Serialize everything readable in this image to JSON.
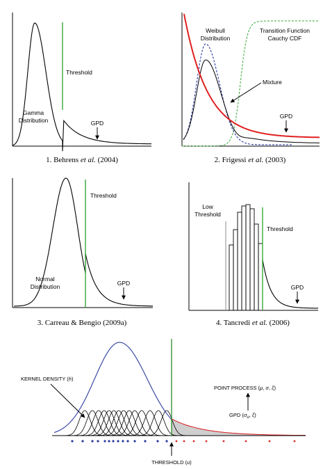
{
  "panels": {
    "p1": {
      "caption_pre": "1. Behrens ",
      "caption_it": "et al.",
      "caption_post": " (2004)",
      "threshold": "Threshold",
      "gamma_1": "Gamma",
      "gamma_2": "Distribution",
      "gpd": "GPD"
    },
    "p2": {
      "caption_pre": "2. Frigessi ",
      "caption_it": "et al.",
      "caption_post": " (2003)",
      "weibull_1": "Weibull",
      "weibull_2": "Distribution",
      "transition_1": "Transition Function",
      "transition_2": "Cauchy CDF",
      "mixture": "Mixture",
      "gpd": "GPD"
    },
    "p3": {
      "caption": "3. Carreau & Bengio (2009a)",
      "threshold": "Threshold",
      "normal_1": "Normal",
      "normal_2": "Distribution",
      "gpd": "GPD"
    },
    "p4": {
      "caption_pre": "4. Tancredi ",
      "caption_it": "et al.",
      "caption_post": " (2006)",
      "low_1": "Low",
      "low_2": "Threshold",
      "threshold": "Threshold",
      "gpd": "GPD"
    },
    "p5": {
      "kernel": "KERNEL DENSITY (h)",
      "point_process": "POINT PROCESS (μ, σ, ξ)",
      "gpd": "GPD (σ_u, ξ)",
      "threshold": "THRESHOLD (u)"
    }
  },
  "colors": {
    "threshold_green": "#3aa83a",
    "mixture_red": "#e02020",
    "weibull_blue": "#1a2aa0",
    "cdf_green": "#33aa33",
    "kernel_blue": "#2b3d9e",
    "gpd_red": "#d82a2a",
    "shade_gray": "#cfcfcf"
  }
}
